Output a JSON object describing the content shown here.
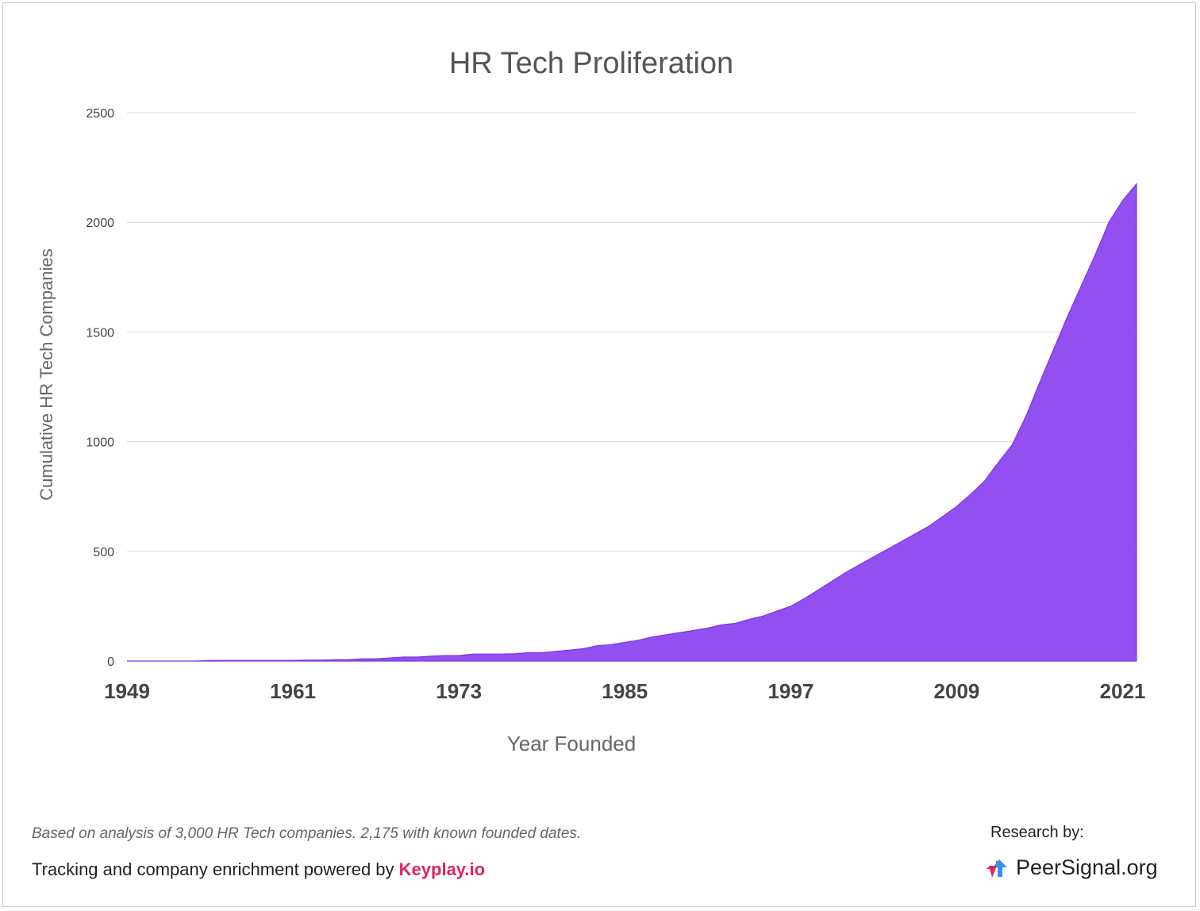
{
  "chart_data": {
    "type": "area",
    "title": "HR Tech Proliferation",
    "xlabel": "Year Founded",
    "ylabel": "Cumulative HR Tech Companies",
    "xlim": [
      1949,
      2022
    ],
    "ylim": [
      0,
      2500
    ],
    "x_ticks": [
      "1949",
      "1961",
      "1973",
      "1985",
      "1997",
      "2009",
      "2021"
    ],
    "y_ticks": [
      "0",
      "500",
      "1000",
      "1500",
      "2000",
      "2500"
    ],
    "grid": true,
    "color": "#9149f1",
    "series": [
      {
        "x": [
          1949,
          1954,
          1955,
          1956,
          1957,
          1958,
          1959,
          1960,
          1961,
          1962,
          1963,
          1964,
          1965,
          1966,
          1967,
          1968,
          1969,
          1970,
          1971,
          1972,
          1973,
          1974,
          1975,
          1976,
          1977,
          1978,
          1979,
          1980,
          1981,
          1982,
          1983,
          1984,
          1985,
          1986,
          1987,
          1988,
          1989,
          1990,
          1991,
          1992,
          1993,
          1994,
          1995,
          1996,
          1997,
          1998,
          1999,
          2000,
          2001,
          2002,
          2003,
          2004,
          2005,
          2006,
          2007,
          2008,
          2009,
          2010,
          2011,
          2012,
          2013,
          2014,
          2015,
          2016,
          2017,
          2018,
          2019,
          2020,
          2021,
          2022
        ],
        "values": [
          0,
          0,
          2,
          3,
          3,
          3,
          3,
          3,
          3,
          4,
          4,
          6,
          6,
          10,
          10,
          14,
          18,
          18,
          22,
          25,
          25,
          32,
          32,
          32,
          33,
          38,
          38,
          44,
          50,
          56,
          70,
          75,
          85,
          95,
          110,
          120,
          130,
          140,
          150,
          165,
          172,
          190,
          205,
          228,
          250,
          285,
          325,
          365,
          405,
          440,
          475,
          510,
          545,
          580,
          615,
          660,
          705,
          760,
          820,
          905,
          985,
          1115,
          1270,
          1420,
          1570,
          1710,
          1850,
          2000,
          2100,
          2175
        ]
      }
    ]
  },
  "footer": {
    "note": "Based on analysis of 3,000 HR Tech companies. 2,175 with known founded dates.",
    "credit_prefix": "Tracking and company enrichment powered by ",
    "credit_brand": "Keyplay.io",
    "research_label": "Research by:",
    "logo_text": "PeerSignal.org",
    "logo_icon": "peersignal-arrows-icon"
  }
}
